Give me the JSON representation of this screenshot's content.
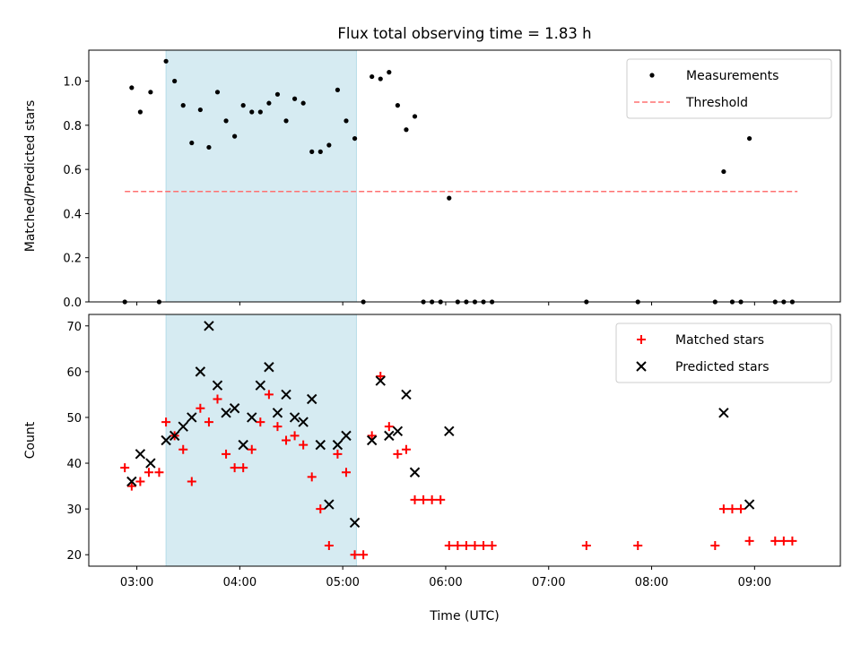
{
  "figure": {
    "title": "Flux total observing time = 1.83 h"
  },
  "chart_data": [
    {
      "type": "scatter",
      "panel": "top",
      "title": "Flux total observing time = 1.83 h",
      "xlabel": "",
      "ylabel": "Matched/Predicted stars",
      "xlim": [
        "02:32",
        "09:50"
      ],
      "ylim": [
        0,
        1.14
      ],
      "yticks": [
        "0.0",
        "0.2",
        "0.4",
        "0.6",
        "0.8",
        "1.0"
      ],
      "legend_position": "top-right",
      "shaded_interval": {
        "start": "03:17",
        "end": "05:08",
        "color": "#add8e6"
      },
      "series": [
        {
          "name": "Measurements",
          "marker": "dot",
          "color": "#000000",
          "points": [
            [
              "02:53",
              0.0
            ],
            [
              "02:57",
              0.97
            ],
            [
              "03:02",
              0.86
            ],
            [
              "03:08",
              0.95
            ],
            [
              "03:13",
              0.0
            ],
            [
              "03:17",
              1.09
            ],
            [
              "03:22",
              1.0
            ],
            [
              "03:27",
              0.89
            ],
            [
              "03:32",
              0.72
            ],
            [
              "03:37",
              0.87
            ],
            [
              "03:42",
              0.7
            ],
            [
              "03:47",
              0.95
            ],
            [
              "03:52",
              0.82
            ],
            [
              "03:57",
              0.75
            ],
            [
              "04:02",
              0.89
            ],
            [
              "04:07",
              0.86
            ],
            [
              "04:12",
              0.86
            ],
            [
              "04:17",
              0.9
            ],
            [
              "04:22",
              0.94
            ],
            [
              "04:27",
              0.82
            ],
            [
              "04:32",
              0.92
            ],
            [
              "04:37",
              0.9
            ],
            [
              "04:42",
              0.68
            ],
            [
              "04:47",
              0.68
            ],
            [
              "04:52",
              0.71
            ],
            [
              "04:57",
              0.96
            ],
            [
              "05:02",
              0.82
            ],
            [
              "05:07",
              0.74
            ],
            [
              "05:12",
              0.0
            ],
            [
              "05:17",
              1.02
            ],
            [
              "05:22",
              1.01
            ],
            [
              "05:27",
              1.04
            ],
            [
              "05:32",
              0.89
            ],
            [
              "05:37",
              0.78
            ],
            [
              "05:42",
              0.84
            ],
            [
              "05:47",
              0.0
            ],
            [
              "05:52",
              0.0
            ],
            [
              "05:57",
              0.0
            ],
            [
              "06:02",
              0.47
            ],
            [
              "06:07",
              0.0
            ],
            [
              "06:12",
              0.0
            ],
            [
              "06:17",
              0.0
            ],
            [
              "06:22",
              0.0
            ],
            [
              "06:27",
              0.0
            ],
            [
              "07:22",
              0.0
            ],
            [
              "07:52",
              0.0
            ],
            [
              "08:37",
              0.0
            ],
            [
              "08:42",
              0.59
            ],
            [
              "08:47",
              0.0
            ],
            [
              "08:52",
              0.0
            ],
            [
              "08:57",
              0.74
            ],
            [
              "09:12",
              0.0
            ],
            [
              "09:17",
              0.0
            ],
            [
              "09:22",
              0.0
            ]
          ]
        },
        {
          "name": "Threshold",
          "line": "dashed",
          "color": "#ff7070",
          "points": [
            [
              "02:53",
              0.5
            ],
            [
              "09:25",
              0.5
            ]
          ]
        }
      ]
    },
    {
      "type": "scatter",
      "panel": "bottom",
      "xlabel": "Time (UTC)",
      "ylabel": "Count",
      "xlim": [
        "02:32",
        "09:50"
      ],
      "ylim": [
        17.5,
        72.5
      ],
      "xticks": [
        "03:00",
        "04:00",
        "05:00",
        "06:00",
        "07:00",
        "08:00",
        "09:00"
      ],
      "yticks": [
        "20",
        "30",
        "40",
        "50",
        "60",
        "70"
      ],
      "legend_position": "top-right",
      "shaded_interval": {
        "start": "03:17",
        "end": "05:08",
        "color": "#add8e6"
      },
      "series": [
        {
          "name": "Matched stars",
          "marker": "plus",
          "color": "#ff0000",
          "points": [
            [
              "02:53",
              39
            ],
            [
              "02:57",
              35
            ],
            [
              "03:02",
              36
            ],
            [
              "03:07",
              38
            ],
            [
              "03:13",
              38
            ],
            [
              "03:17",
              49
            ],
            [
              "03:22",
              46
            ],
            [
              "03:27",
              43
            ],
            [
              "03:32",
              36
            ],
            [
              "03:37",
              52
            ],
            [
              "03:42",
              49
            ],
            [
              "03:47",
              54
            ],
            [
              "03:52",
              42
            ],
            [
              "03:57",
              39
            ],
            [
              "04:02",
              39
            ],
            [
              "04:07",
              43
            ],
            [
              "04:12",
              49
            ],
            [
              "04:17",
              55
            ],
            [
              "04:22",
              48
            ],
            [
              "04:27",
              45
            ],
            [
              "04:32",
              46
            ],
            [
              "04:37",
              44
            ],
            [
              "04:42",
              37
            ],
            [
              "04:47",
              30
            ],
            [
              "04:52",
              22
            ],
            [
              "04:57",
              42
            ],
            [
              "05:02",
              38
            ],
            [
              "05:07",
              20
            ],
            [
              "05:12",
              20
            ],
            [
              "05:17",
              46
            ],
            [
              "05:22",
              59
            ],
            [
              "05:27",
              48
            ],
            [
              "05:32",
              42
            ],
            [
              "05:37",
              43
            ],
            [
              "05:42",
              32
            ],
            [
              "05:47",
              32
            ],
            [
              "05:52",
              32
            ],
            [
              "05:57",
              32
            ],
            [
              "06:02",
              22
            ],
            [
              "06:07",
              22
            ],
            [
              "06:12",
              22
            ],
            [
              "06:17",
              22
            ],
            [
              "06:22",
              22
            ],
            [
              "06:27",
              22
            ],
            [
              "07:22",
              22
            ],
            [
              "07:52",
              22
            ],
            [
              "08:37",
              22
            ],
            [
              "08:42",
              30
            ],
            [
              "08:47",
              30
            ],
            [
              "08:52",
              30
            ],
            [
              "08:57",
              23
            ],
            [
              "09:12",
              23
            ],
            [
              "09:17",
              23
            ],
            [
              "09:22",
              23
            ]
          ]
        },
        {
          "name": "Predicted stars",
          "marker": "x",
          "color": "#000000",
          "points": [
            [
              "02:57",
              36
            ],
            [
              "03:02",
              42
            ],
            [
              "03:08",
              40
            ],
            [
              "03:17",
              45
            ],
            [
              "03:22",
              46
            ],
            [
              "03:27",
              48
            ],
            [
              "03:32",
              50
            ],
            [
              "03:37",
              60
            ],
            [
              "03:42",
              70
            ],
            [
              "03:47",
              57
            ],
            [
              "03:52",
              51
            ],
            [
              "03:57",
              52
            ],
            [
              "04:02",
              44
            ],
            [
              "04:07",
              50
            ],
            [
              "04:12",
              57
            ],
            [
              "04:17",
              61
            ],
            [
              "04:22",
              51
            ],
            [
              "04:27",
              55
            ],
            [
              "04:32",
              50
            ],
            [
              "04:37",
              49
            ],
            [
              "04:42",
              54
            ],
            [
              "04:47",
              44
            ],
            [
              "04:52",
              31
            ],
            [
              "04:57",
              44
            ],
            [
              "05:02",
              46
            ],
            [
              "05:07",
              27
            ],
            [
              "05:17",
              45
            ],
            [
              "05:22",
              58
            ],
            [
              "05:27",
              46
            ],
            [
              "05:32",
              47
            ],
            [
              "05:37",
              55
            ],
            [
              "05:42",
              38
            ],
            [
              "06:02",
              47
            ],
            [
              "08:42",
              51
            ],
            [
              "08:57",
              31
            ]
          ]
        }
      ]
    }
  ]
}
